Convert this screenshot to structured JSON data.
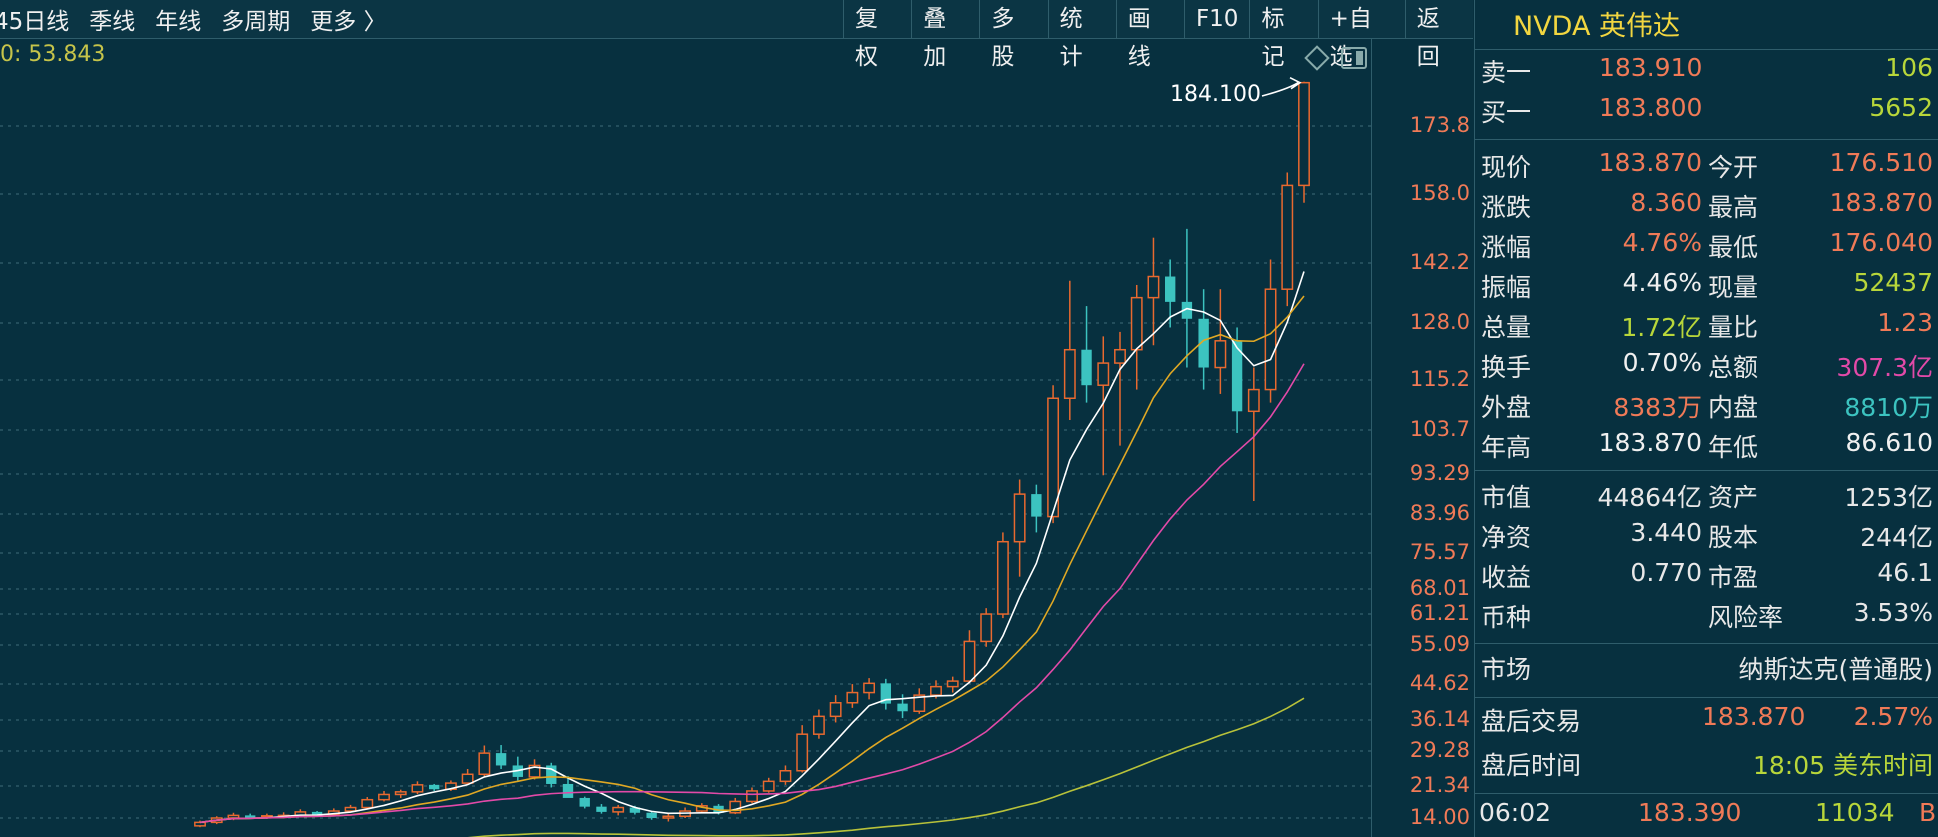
{
  "toolbar": {
    "tabs": [
      "45日线",
      "季线",
      "年线",
      "多周期",
      "更多 〉"
    ],
    "buttons": [
      "复权",
      "叠加",
      "多股",
      "统计",
      "画线",
      "F10",
      "标记",
      "+自选",
      "返回"
    ]
  },
  "ma_label": "0: 53.843",
  "max_callout": "184.100",
  "y_ticks": [
    "173.8",
    "158.0",
    "142.2",
    "128.0",
    "115.2",
    "103.7",
    "93.29",
    "83.96",
    "75.57",
    "68.01",
    "61.21",
    "55.09",
    "44.62",
    "36.14",
    "29.28",
    "21.34",
    "14.00"
  ],
  "colors": {
    "up": "#e8692f",
    "down": "#3cc3c0",
    "ma1": "#ffffff",
    "ma2": "#e0a824",
    "ma3": "#e24aa8",
    "ma4": "#b8c23a",
    "price": "#f07a57",
    "green_text": "#b8d63a"
  },
  "chart_data": {
    "type": "candlestick",
    "candles": [
      {
        "o": 12.2,
        "h": 13.4,
        "l": 11.9,
        "c": 13.0
      },
      {
        "o": 13.0,
        "h": 14.4,
        "l": 12.6,
        "c": 14.0
      },
      {
        "o": 14.0,
        "h": 15.2,
        "l": 13.5,
        "c": 14.6
      },
      {
        "o": 14.6,
        "h": 15.0,
        "l": 13.8,
        "c": 14.1
      },
      {
        "o": 14.2,
        "h": 15.0,
        "l": 13.8,
        "c": 14.5
      },
      {
        "o": 14.5,
        "h": 15.3,
        "l": 13.9,
        "c": 14.6
      },
      {
        "o": 14.6,
        "h": 16.0,
        "l": 14.2,
        "c": 15.4
      },
      {
        "o": 15.4,
        "h": 15.6,
        "l": 14.4,
        "c": 14.8
      },
      {
        "o": 14.8,
        "h": 16.2,
        "l": 14.5,
        "c": 15.6
      },
      {
        "o": 15.6,
        "h": 17.0,
        "l": 15.2,
        "c": 16.4
      },
      {
        "o": 16.4,
        "h": 18.8,
        "l": 16.0,
        "c": 18.2
      },
      {
        "o": 18.2,
        "h": 20.2,
        "l": 17.8,
        "c": 19.4
      },
      {
        "o": 19.4,
        "h": 20.5,
        "l": 18.6,
        "c": 20.0
      },
      {
        "o": 20.0,
        "h": 22.4,
        "l": 19.5,
        "c": 21.6
      },
      {
        "o": 21.6,
        "h": 21.8,
        "l": 20.2,
        "c": 20.6
      },
      {
        "o": 20.6,
        "h": 22.6,
        "l": 20.2,
        "c": 22.0
      },
      {
        "o": 22.0,
        "h": 25.2,
        "l": 21.6,
        "c": 24.0
      },
      {
        "o": 24.0,
        "h": 30.5,
        "l": 23.6,
        "c": 28.8
      },
      {
        "o": 28.8,
        "h": 30.6,
        "l": 25.2,
        "c": 26.0
      },
      {
        "o": 26.0,
        "h": 28.0,
        "l": 22.6,
        "c": 23.4
      },
      {
        "o": 23.4,
        "h": 27.4,
        "l": 22.8,
        "c": 26.0
      },
      {
        "o": 26.0,
        "h": 26.6,
        "l": 21.0,
        "c": 21.8
      },
      {
        "o": 21.8,
        "h": 23.6,
        "l": 19.4,
        "c": 18.6
      },
      {
        "o": 18.6,
        "h": 18.9,
        "l": 16.2,
        "c": 16.6
      },
      {
        "o": 16.6,
        "h": 17.2,
        "l": 15.0,
        "c": 15.4
      },
      {
        "o": 15.4,
        "h": 17.0,
        "l": 14.6,
        "c": 16.4
      },
      {
        "o": 16.4,
        "h": 16.8,
        "l": 14.8,
        "c": 15.2
      },
      {
        "o": 15.2,
        "h": 15.6,
        "l": 13.6,
        "c": 14.0
      },
      {
        "o": 14.0,
        "h": 15.0,
        "l": 13.2,
        "c": 14.4
      },
      {
        "o": 14.4,
        "h": 16.4,
        "l": 14.0,
        "c": 15.6
      },
      {
        "o": 15.6,
        "h": 17.4,
        "l": 15.2,
        "c": 16.8
      },
      {
        "o": 16.8,
        "h": 17.2,
        "l": 14.8,
        "c": 15.2
      },
      {
        "o": 15.2,
        "h": 18.6,
        "l": 14.9,
        "c": 17.8
      },
      {
        "o": 17.8,
        "h": 21.0,
        "l": 17.4,
        "c": 20.2
      },
      {
        "o": 20.2,
        "h": 23.2,
        "l": 19.8,
        "c": 22.4
      },
      {
        "o": 22.4,
        "h": 26.0,
        "l": 21.6,
        "c": 24.8
      },
      {
        "o": 24.8,
        "h": 35.0,
        "l": 24.4,
        "c": 33.0
      },
      {
        "o": 33.0,
        "h": 38.6,
        "l": 32.0,
        "c": 37.0
      },
      {
        "o": 37.0,
        "h": 42.0,
        "l": 35.6,
        "c": 40.2
      },
      {
        "o": 40.2,
        "h": 44.6,
        "l": 39.0,
        "c": 42.6
      },
      {
        "o": 42.6,
        "h": 46.2,
        "l": 41.0,
        "c": 44.8
      },
      {
        "o": 44.8,
        "h": 46.0,
        "l": 38.6,
        "c": 40.0
      },
      {
        "o": 40.0,
        "h": 42.2,
        "l": 36.6,
        "c": 38.2
      },
      {
        "o": 38.2,
        "h": 43.6,
        "l": 37.6,
        "c": 42.0
      },
      {
        "o": 42.0,
        "h": 45.6,
        "l": 41.2,
        "c": 44.0
      },
      {
        "o": 44.0,
        "h": 46.6,
        "l": 42.6,
        "c": 45.4
      },
      {
        "o": 45.4,
        "h": 58.0,
        "l": 44.8,
        "c": 55.8
      },
      {
        "o": 55.8,
        "h": 62.8,
        "l": 54.6,
        "c": 61.2
      },
      {
        "o": 61.2,
        "h": 80.0,
        "l": 60.4,
        "c": 78.0
      },
      {
        "o": 78.0,
        "h": 92.0,
        "l": 70.6,
        "c": 88.6
      },
      {
        "o": 88.6,
        "h": 90.8,
        "l": 80.0,
        "c": 83.4
      },
      {
        "o": 83.4,
        "h": 114.0,
        "l": 82.0,
        "c": 111.0
      },
      {
        "o": 111.0,
        "h": 138.0,
        "l": 106.0,
        "c": 122.0
      },
      {
        "o": 122.0,
        "h": 132.0,
        "l": 110.0,
        "c": 114.0
      },
      {
        "o": 114.0,
        "h": 125.0,
        "l": 93.0,
        "c": 119.0
      },
      {
        "o": 119.0,
        "h": 126.0,
        "l": 100.0,
        "c": 122.0
      },
      {
        "o": 122.0,
        "h": 137.0,
        "l": 113.0,
        "c": 134.0
      },
      {
        "o": 134.0,
        "h": 148.0,
        "l": 123.0,
        "c": 139.0
      },
      {
        "o": 139.0,
        "h": 143.0,
        "l": 127.0,
        "c": 133.0
      },
      {
        "o": 133.0,
        "h": 150.0,
        "l": 118.0,
        "c": 129.0
      },
      {
        "o": 129.0,
        "h": 136.0,
        "l": 113.0,
        "c": 118.0
      },
      {
        "o": 118.0,
        "h": 136.0,
        "l": 112.0,
        "c": 124.0
      },
      {
        "o": 124.0,
        "h": 127.0,
        "l": 103.0,
        "c": 108.0
      },
      {
        "o": 108.0,
        "h": 118.0,
        "l": 87.0,
        "c": 113.0
      },
      {
        "o": 113.0,
        "h": 143.0,
        "l": 110.0,
        "c": 136.0
      },
      {
        "o": 136.0,
        "h": 163.0,
        "l": 132.0,
        "c": 160.0
      },
      {
        "o": 160.0,
        "h": 184.1,
        "l": 156.0,
        "c": 183.87
      }
    ]
  },
  "quote": {
    "title": "NVDA 英伟达",
    "sell1": {
      "label": "卖一",
      "price": "183.910",
      "vol": "106"
    },
    "buy1": {
      "label": "买一",
      "price": "183.800",
      "vol": "5652"
    },
    "grid": [
      [
        {
          "l": "现价",
          "v": "183.870",
          "c": "up"
        },
        {
          "l": "今开",
          "v": "176.510",
          "c": "up"
        }
      ],
      [
        {
          "l": "涨跌",
          "v": "8.360",
          "c": "up"
        },
        {
          "l": "最高",
          "v": "183.870",
          "c": "up"
        }
      ],
      [
        {
          "l": "涨幅",
          "v": "4.76%",
          "c": "up"
        },
        {
          "l": "最低",
          "v": "176.040",
          "c": "up"
        }
      ],
      [
        {
          "l": "振幅",
          "v": "4.46%",
          "c": "white"
        },
        {
          "l": "现量",
          "v": "52437",
          "c": "green"
        }
      ],
      [
        {
          "l": "总量",
          "v": "1.72亿",
          "c": "green"
        },
        {
          "l": "量比",
          "v": "1.23",
          "c": "up"
        }
      ],
      [
        {
          "l": "换手",
          "v": "0.70%",
          "c": "white"
        },
        {
          "l": "总额",
          "v": "307.3亿",
          "c": "magenta"
        }
      ],
      [
        {
          "l": "外盘",
          "v": "8383万",
          "c": "up"
        },
        {
          "l": "内盘",
          "v": "8810万",
          "c": "cyan"
        }
      ],
      [
        {
          "l": "年高",
          "v": "183.870",
          "c": "white"
        },
        {
          "l": "年低",
          "v": "86.610",
          "c": "white"
        }
      ]
    ],
    "grid2": [
      [
        {
          "l": "市值",
          "v": "44864亿"
        },
        {
          "l": "资产",
          "v": "1253亿"
        }
      ],
      [
        {
          "l": "净资",
          "v": "3.440"
        },
        {
          "l": "股本",
          "v": "244亿"
        }
      ],
      [
        {
          "l": "收益",
          "v": "0.770"
        },
        {
          "l": "市盈",
          "v": "46.1"
        }
      ],
      [
        {
          "l": "币种",
          "v": ""
        },
        {
          "l": "风险率",
          "v": "3.53%"
        }
      ]
    ],
    "market_label": "市场",
    "market_value": "纳斯达克(普通股)",
    "after_label": "盘后交易",
    "after_price": "183.870",
    "after_pct": "2.57%",
    "after_time_label": "盘后时间",
    "after_time_value": "18:05 美东时间",
    "tick": {
      "time": "06:02",
      "price": "183.390",
      "vol": "11034",
      "side": "B"
    }
  }
}
